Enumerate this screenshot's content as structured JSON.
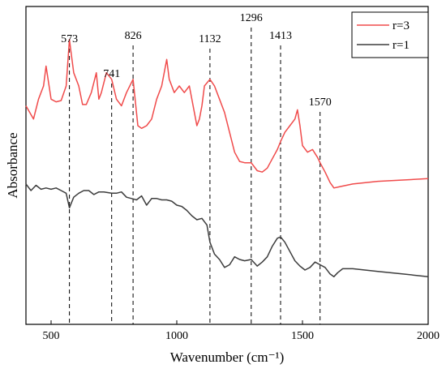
{
  "chart_data": {
    "type": "line",
    "xlabel": "Wavenumber (cm⁻¹)",
    "ylabel": "Absorbance",
    "xlim": [
      400,
      2000
    ],
    "x_ticks": [
      500,
      1000,
      1500,
      2000
    ],
    "y_ticks_shown": false,
    "grid": false,
    "legend_placement": "top-right",
    "series": [
      {
        "name": "r=3",
        "color": "#f04b4b",
        "x": [
          400,
          430,
          450,
          470,
          480,
          500,
          520,
          540,
          560,
          573,
          590,
          610,
          625,
          640,
          660,
          680,
          690,
          700,
          720,
          741,
          760,
          780,
          800,
          826,
          845,
          860,
          880,
          900,
          920,
          940,
          960,
          970,
          990,
          1010,
          1030,
          1050,
          1070,
          1080,
          1090,
          1100,
          1110,
          1132,
          1150,
          1170,
          1190,
          1210,
          1230,
          1250,
          1270,
          1296,
          1320,
          1340,
          1360,
          1380,
          1400,
          1413,
          1430,
          1450,
          1470,
          1480,
          1490,
          1500,
          1520,
          1540,
          1560,
          1570,
          1590,
          1610,
          1625,
          1650,
          1700,
          1800,
          1900,
          2000
        ],
        "y": [
          56.5,
          55.5,
          57,
          58,
          59.5,
          57,
          56.8,
          56.9,
          58,
          61.5,
          59,
          58,
          56.6,
          56.6,
          57.5,
          59,
          57,
          57.5,
          59,
          58.5,
          57,
          56.5,
          57.5,
          58.5,
          55,
          54.8,
          55,
          55.5,
          57,
          58,
          60,
          58.5,
          57.5,
          58,
          57.5,
          58,
          56,
          55,
          55.5,
          56.5,
          58,
          58.5,
          58,
          57,
          56,
          54.5,
          53,
          52.3,
          52.2,
          52.2,
          51.6,
          51.5,
          51.8,
          52.5,
          53.2,
          53.8,
          54.5,
          55,
          55.5,
          56.2,
          55,
          53.5,
          53,
          53.2,
          52.6,
          52.2,
          51.5,
          50.7,
          50.3,
          50.4,
          50.6,
          50.8,
          50.9,
          51
        ]
      },
      {
        "name": "r=1",
        "color": "#3d3d3d",
        "x": [
          400,
          420,
          440,
          460,
          480,
          500,
          520,
          540,
          560,
          573,
          590,
          610,
          630,
          650,
          670,
          690,
          710,
          741,
          760,
          780,
          800,
          820,
          840,
          860,
          880,
          900,
          920,
          940,
          960,
          980,
          1000,
          1020,
          1040,
          1060,
          1080,
          1100,
          1120,
          1132,
          1150,
          1170,
          1190,
          1210,
          1230,
          1250,
          1270,
          1296,
          1320,
          1340,
          1360,
          1380,
          1400,
          1413,
          1430,
          1450,
          1470,
          1490,
          1510,
          1530,
          1550,
          1570,
          1590,
          1610,
          1625,
          1640,
          1660,
          1700,
          1800,
          1900,
          2000
        ],
        "y": [
          50.6,
          50.1,
          50.5,
          50.2,
          50.3,
          50.2,
          50.3,
          50.1,
          49.9,
          48.8,
          49.6,
          49.9,
          50.1,
          50.1,
          49.8,
          50.0,
          50.0,
          49.9,
          49.9,
          50.0,
          49.6,
          49.5,
          49.4,
          49.7,
          49.0,
          49.5,
          49.5,
          49.4,
          49.4,
          49.3,
          49.0,
          48.9,
          48.6,
          48.2,
          47.9,
          48.0,
          47.5,
          46.2,
          45.3,
          44.9,
          44.3,
          44.5,
          45.1,
          44.9,
          44.8,
          44.9,
          44.4,
          44.7,
          45.1,
          45.9,
          46.5,
          46.6,
          46.2,
          45.5,
          44.8,
          44.4,
          44.1,
          44.3,
          44.7,
          44.5,
          44.3,
          43.8,
          43.6,
          43.9,
          44.2,
          44.2,
          44.0,
          43.8,
          43.6
        ]
      }
    ],
    "annotations": [
      {
        "x": 573,
        "label": "573"
      },
      {
        "x": 741,
        "label": "741"
      },
      {
        "x": 826,
        "label": "826"
      },
      {
        "x": 1132,
        "label": "1132"
      },
      {
        "x": 1296,
        "label": "1296"
      },
      {
        "x": 1413,
        "label": "1413"
      },
      {
        "x": 1570,
        "label": "1570"
      }
    ]
  }
}
